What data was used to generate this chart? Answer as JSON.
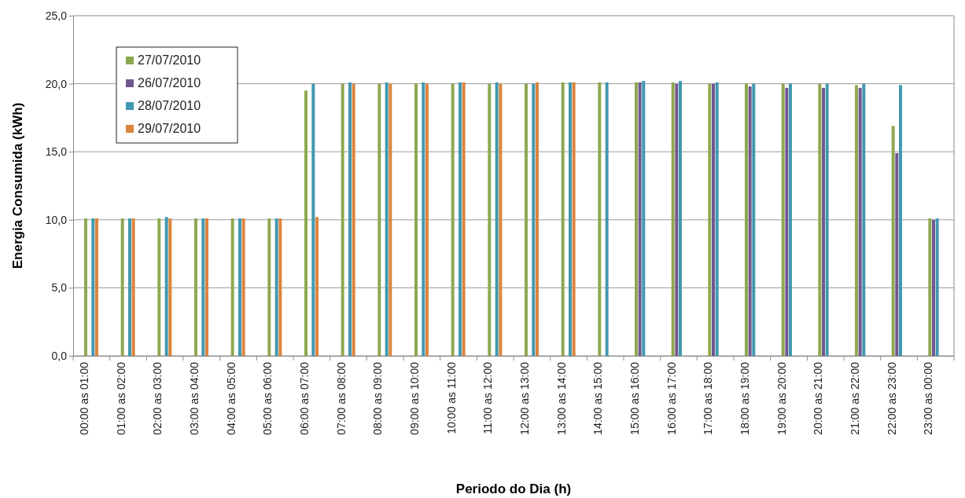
{
  "chart_data": {
    "type": "bar",
    "xlabel": "Periodo do Dia (h)",
    "ylabel": "Energia Consumida (kWh)",
    "categories": [
      "00:00 as 01:00",
      "01:00 as 02:00",
      "02:00 as 03:00",
      "03:00 as 04:00",
      "04:00 as 05:00",
      "05:00 as 06:00",
      "06:00 as 07:00",
      "07:00 as 08:00",
      "08:00 as 09:00",
      "09:00 as 10:00",
      "10:00 as 11:00",
      "11:00 as 12:00",
      "12:00 as 13:00",
      "13:00 as 14:00",
      "14:00 as 15:00",
      "15:00 as 16:00",
      "16:00 as 17:00",
      "17:00 as 18:00",
      "18:00 as 19:00",
      "19:00 as 20:00",
      "20:00 as 21:00",
      "21:00 as 22:00",
      "22:00 as 23:00",
      "23:00 as 00:00"
    ],
    "series": [
      {
        "name": "27/07/2010",
        "color": "#8ea84f",
        "values": [
          10.1,
          10.1,
          10.1,
          10.1,
          10.1,
          10.1,
          19.5,
          20.0,
          20.0,
          20.0,
          20.0,
          20.0,
          20.0,
          20.1,
          20.1,
          20.1,
          20.1,
          20.0,
          20.0,
          20.0,
          20.0,
          19.9,
          16.9,
          10.1
        ]
      },
      {
        "name": "26/07/2010",
        "color": "#71588f",
        "values": [
          null,
          null,
          null,
          null,
          null,
          null,
          null,
          null,
          null,
          null,
          null,
          null,
          null,
          null,
          null,
          20.1,
          20.0,
          20.0,
          19.8,
          19.7,
          19.7,
          19.7,
          14.9,
          10.0
        ]
      },
      {
        "name": "28/07/2010",
        "color": "#4198af",
        "values": [
          10.1,
          10.1,
          10.2,
          10.1,
          10.1,
          10.1,
          20.0,
          20.1,
          20.1,
          20.1,
          20.1,
          20.1,
          20.0,
          20.1,
          20.1,
          20.2,
          20.2,
          20.1,
          20.0,
          20.0,
          20.0,
          20.0,
          19.9,
          10.1
        ]
      },
      {
        "name": "29/07/2010",
        "color": "#db843d",
        "values": [
          10.1,
          10.1,
          10.1,
          10.1,
          10.1,
          10.1,
          10.2,
          20.0,
          20.0,
          20.0,
          20.1,
          20.0,
          20.1,
          20.1,
          null,
          null,
          null,
          null,
          null,
          null,
          null,
          null,
          null,
          null
        ]
      }
    ],
    "ylim": [
      0,
      25
    ],
    "yticks": [
      {
        "value": 0,
        "label": "0,0"
      },
      {
        "value": 5,
        "label": "5,0"
      },
      {
        "value": 10,
        "label": "10,0"
      },
      {
        "value": 15,
        "label": "15,0"
      },
      {
        "value": 20,
        "label": "20,0"
      },
      {
        "value": 25,
        "label": "25,0"
      }
    ],
    "grid": "y",
    "legend": "top left"
  }
}
